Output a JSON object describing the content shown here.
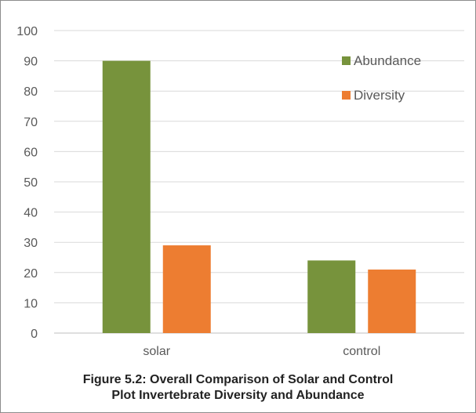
{
  "caption": {
    "line1": "Figure 5.2: Overall Comparison of Solar and Control",
    "line2": "Plot Invertebrate Diversity and Abundance"
  },
  "colors": {
    "abundance": "#77933c",
    "diversity": "#ed7d31",
    "grid": "#d9d9d9",
    "axis": "#bfbfbf"
  },
  "chart_data": {
    "type": "bar",
    "categories": [
      "solar",
      "control"
    ],
    "series": [
      {
        "name": "Abundance",
        "values": [
          90,
          24
        ],
        "color": "#77933c"
      },
      {
        "name": "Diversity",
        "values": [
          29,
          21
        ],
        "color": "#ed7d31"
      }
    ],
    "ylim": [
      0,
      100
    ],
    "yticks": [
      0,
      10,
      20,
      30,
      40,
      50,
      60,
      70,
      80,
      90,
      100
    ],
    "grid": true,
    "legend_position": "top-right",
    "title": "",
    "xlabel": "",
    "ylabel": ""
  }
}
